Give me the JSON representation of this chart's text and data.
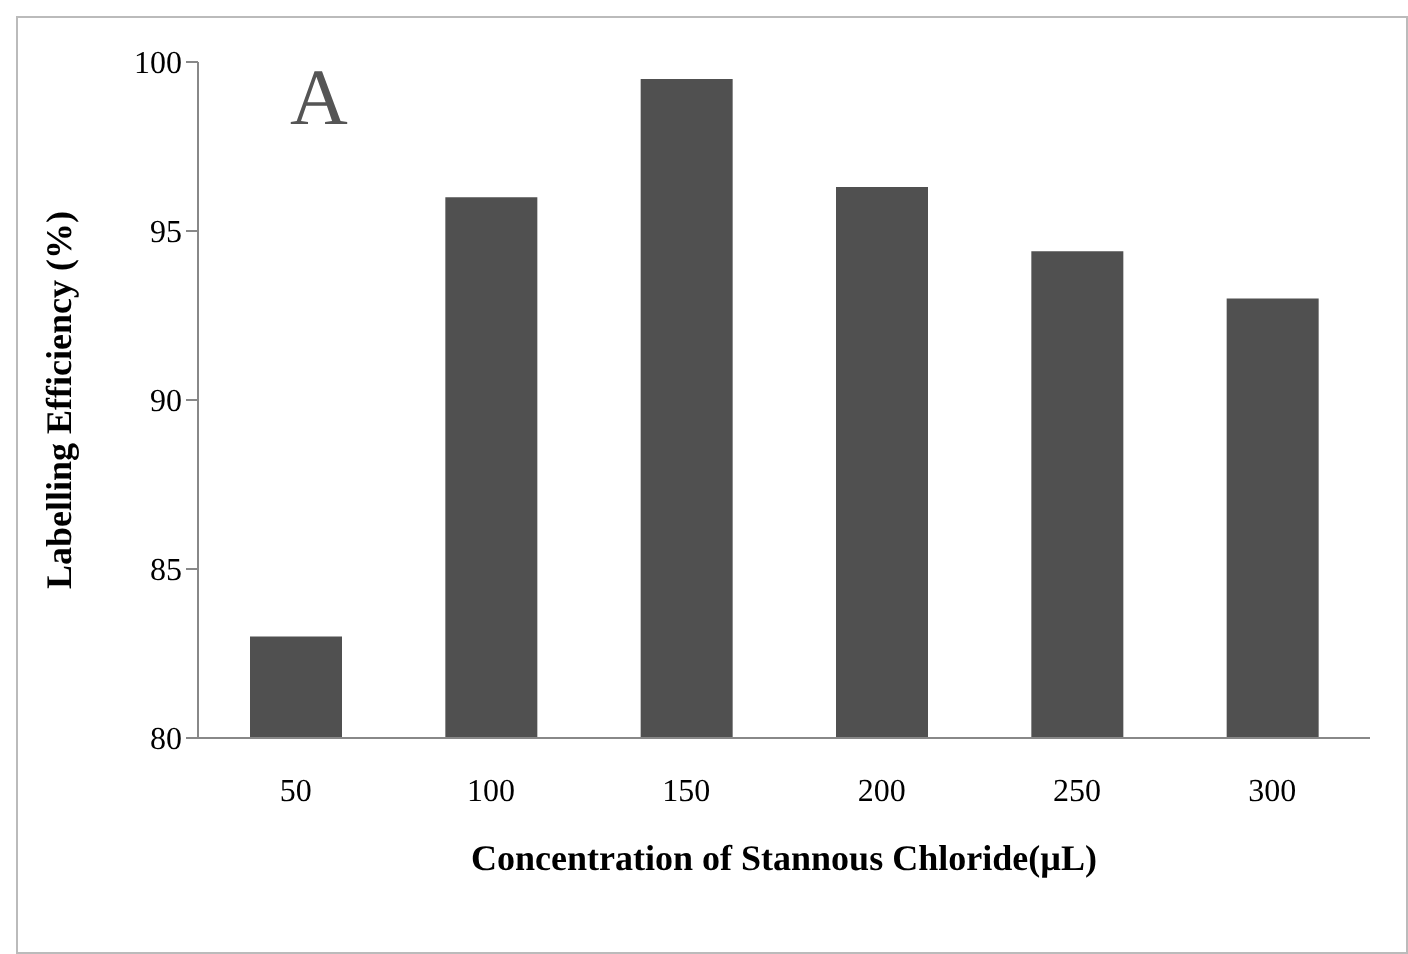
{
  "chart_data": {
    "type": "bar",
    "categories": [
      "50",
      "100",
      "150",
      "200",
      "250",
      "300"
    ],
    "values": [
      83.0,
      96.0,
      99.5,
      96.3,
      94.4,
      93.0
    ],
    "color": "#505050",
    "ylim": [
      80,
      100
    ],
    "yticks": [
      80,
      85,
      90,
      95,
      100
    ],
    "xlabel": "Concentration of Stannous Chloride(µL)",
    "ylabel": "Labelling Efficiency (%)",
    "annotations": [
      "A"
    ],
    "grid": false,
    "legend": false
  }
}
